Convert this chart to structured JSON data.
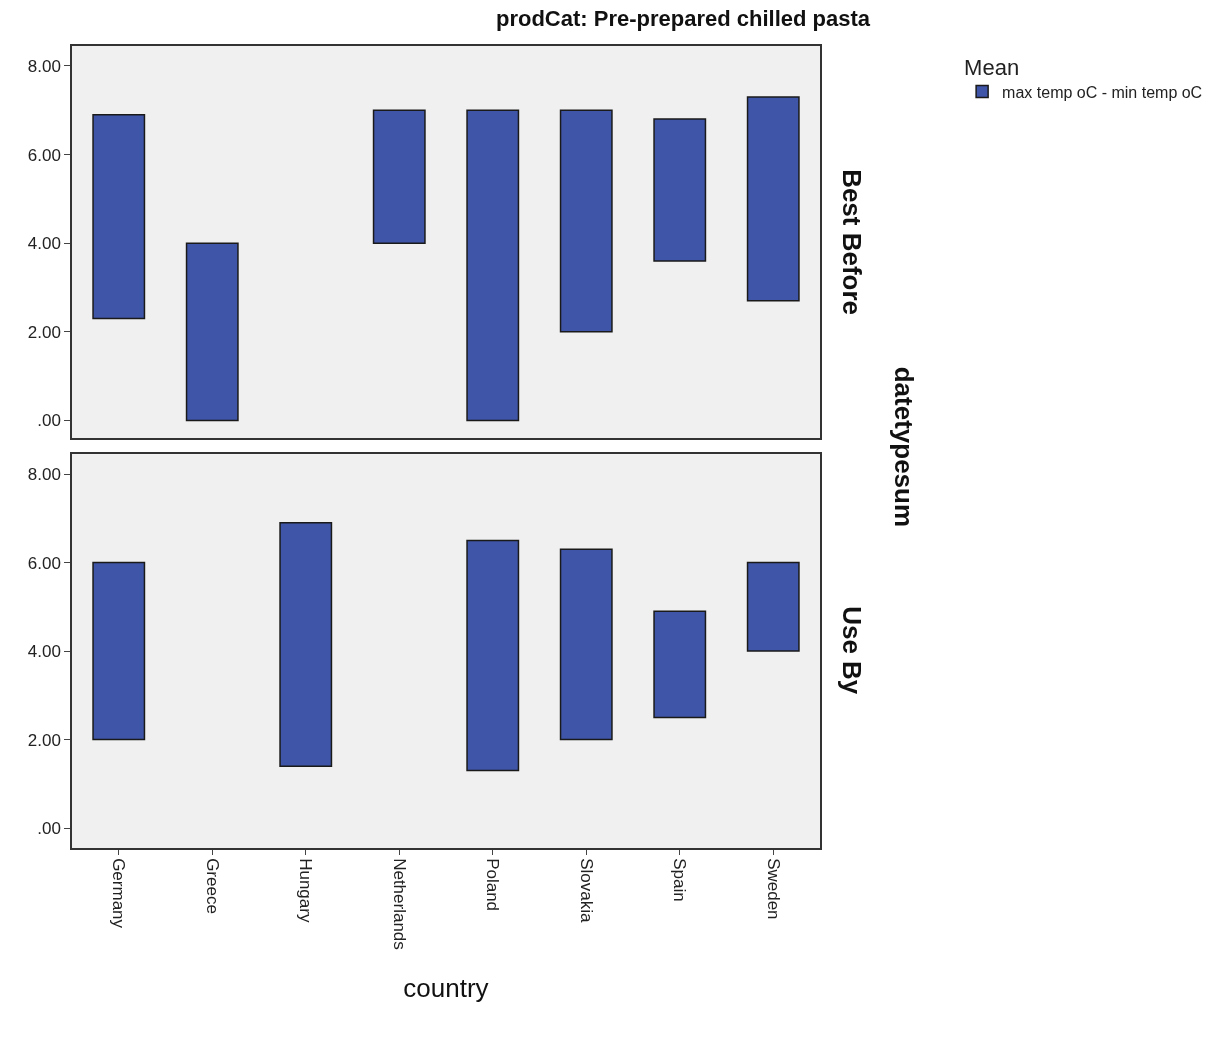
{
  "chart_data": [
    {
      "type": "bar",
      "title": "prodCat: Pre-prepared chilled pasta",
      "legend_title": "Mean",
      "legend": "top right",
      "grid": false,
      "tick_labels": "y",
      "categories": [
        "Germany",
        "Greece",
        "Hungary",
        "Netherlands",
        "Poland",
        "Slovakia",
        "Spain",
        "Sweden"
      ],
      "series": [
        {
          "name": "max temp oC - min temp oC",
          "color": "#3f55a8",
          "values": [
            4.6,
            4.0,
            null,
            3.0,
            7.0,
            5.0,
            3.2,
            4.6
          ],
          "base": [
            2.3,
            0.0,
            null,
            4.0,
            0.0,
            2.0,
            3.6,
            2.7
          ]
        }
      ],
      "ylim": [
        -0.4,
        8.45
      ],
      "yticks": [
        {
          "value": 0,
          "label": ".00"
        },
        {
          "value": 2,
          "label": "2.00"
        },
        {
          "value": 4,
          "label": "4.00"
        },
        {
          "value": 6,
          "label": "6.00"
        },
        {
          "value": 8,
          "label": "8.00"
        }
      ],
      "annotations": [
        "Best Before",
        "datetypesum"
      ]
    },
    {
      "type": "bar",
      "xlabel": "country",
      "grid": false,
      "categories": [
        "Germany",
        "Greece",
        "Hungary",
        "Netherlands",
        "Poland",
        "Slovakia",
        "Spain",
        "Sweden"
      ],
      "series": [
        {
          "name": "max temp oC - min temp oC",
          "color": "#3f55a8",
          "values": [
            4.0,
            null,
            5.5,
            null,
            5.2,
            4.3,
            2.4,
            2.0
          ],
          "base": [
            2.0,
            null,
            1.4,
            null,
            1.3,
            2.0,
            2.5,
            4.0
          ]
        }
      ],
      "ylim": [
        -0.45,
        8.45
      ],
      "yticks": [
        {
          "value": 0,
          "label": ".00"
        },
        {
          "value": 2,
          "label": "2.00"
        },
        {
          "value": 4,
          "label": "4.00"
        },
        {
          "value": 6,
          "label": "6.00"
        },
        {
          "value": 8,
          "label": "8.00"
        }
      ],
      "annotations": [
        "Use By"
      ]
    }
  ]
}
